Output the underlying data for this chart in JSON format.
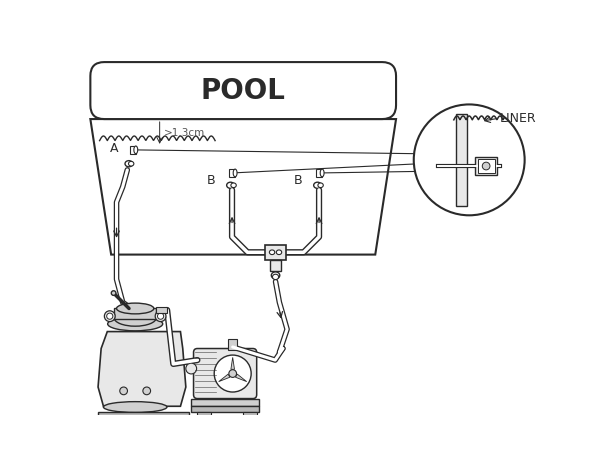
{
  "bg_color": "#ffffff",
  "lc": "#2a2a2a",
  "gray1": "#e8e8e8",
  "gray2": "#d0d0d0",
  "gray3": "#b8b8b8",
  "pool_label": "POOL",
  "liner_label": "LINER",
  "label_A": "A",
  "label_B": "B",
  "dim_label": ">1.3cm",
  "figsize": [
    6.0,
    4.66
  ],
  "dpi": 100
}
